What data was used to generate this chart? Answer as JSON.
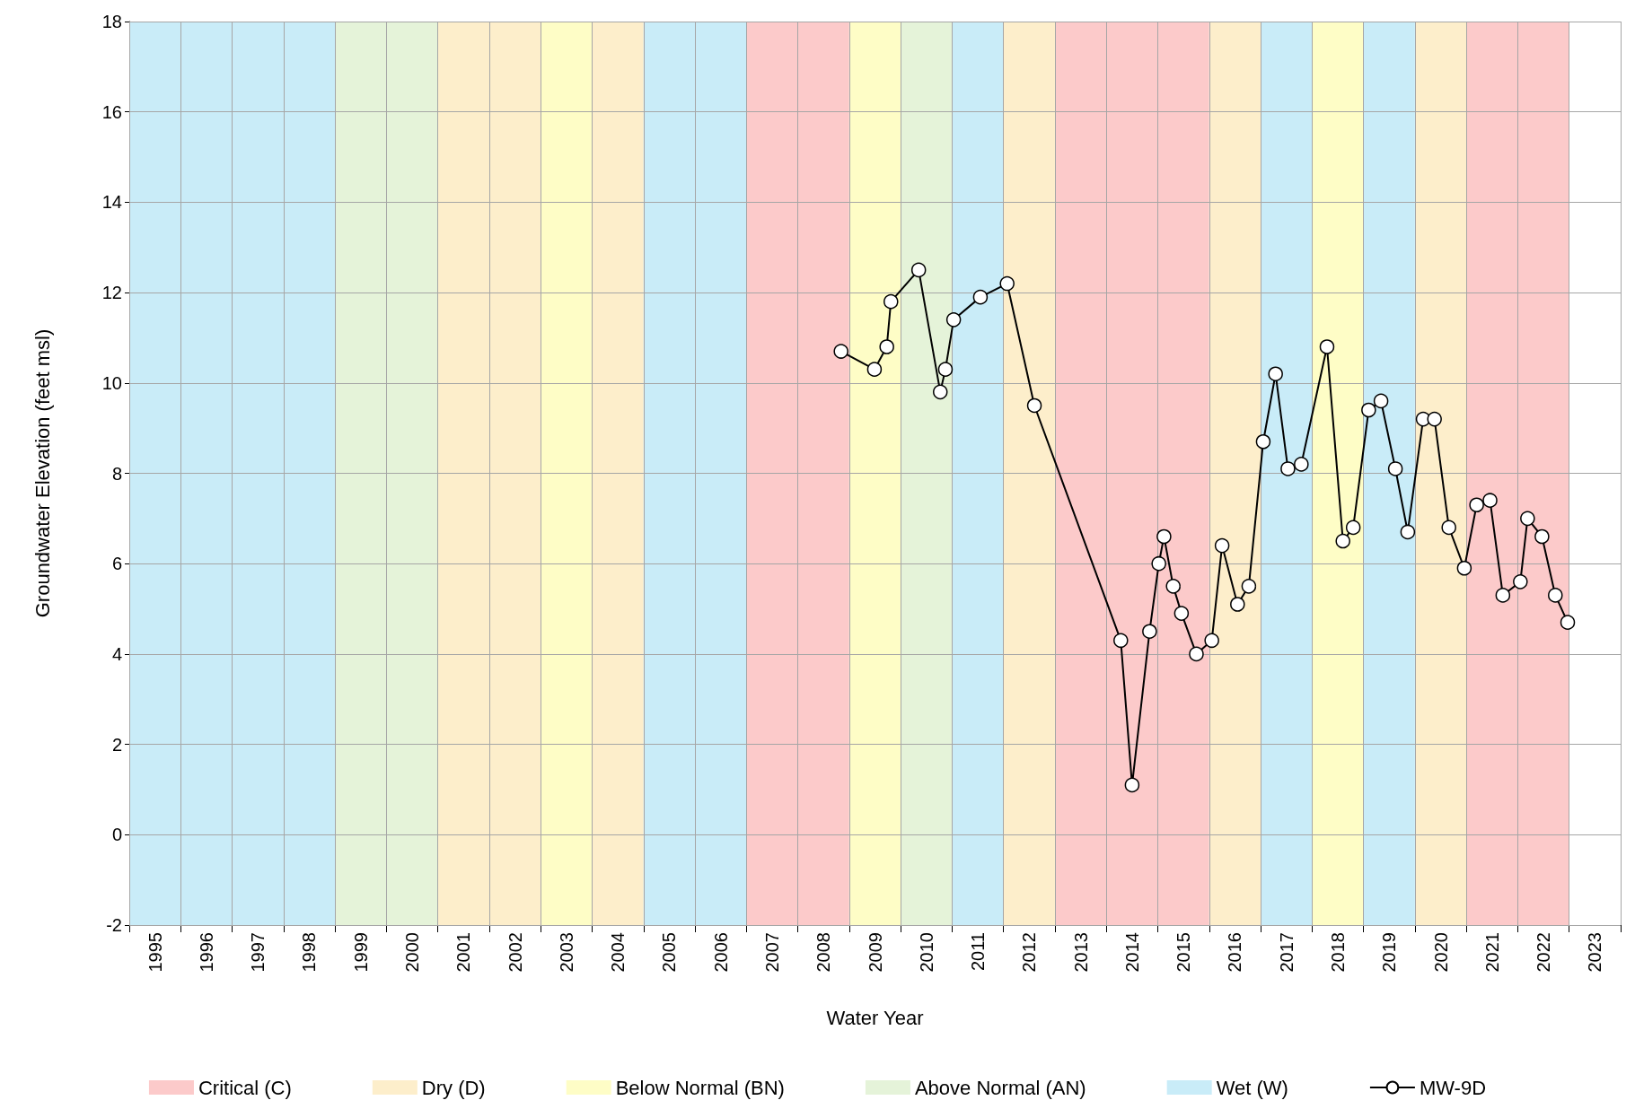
{
  "chart_data": {
    "type": "line",
    "xlabel": "Water Year",
    "ylabel": "Groundwater Elevation (feet msl)",
    "xlim": [
      1994.5,
      2023.5
    ],
    "ylim": [
      -2,
      18
    ],
    "yticks": [
      -2,
      0,
      2,
      4,
      6,
      8,
      10,
      12,
      14,
      16,
      18
    ],
    "xticks": [
      {
        "value": 1994.5,
        "label": null
      },
      {
        "value": 1995,
        "label": "1995"
      },
      {
        "value": 1995.5,
        "label": null
      },
      {
        "value": 1996,
        "label": "1996"
      },
      {
        "value": 1996.5,
        "label": null
      },
      {
        "value": 1997,
        "label": "1997"
      },
      {
        "value": 1997.5,
        "label": null
      },
      {
        "value": 1998,
        "label": "1998"
      },
      {
        "value": 1998.5,
        "label": null
      },
      {
        "value": 1999,
        "label": "1999"
      },
      {
        "value": 1999.5,
        "label": null
      },
      {
        "value": 2000,
        "label": "2000"
      },
      {
        "value": 2000.5,
        "label": null
      },
      {
        "value": 2001,
        "label": "2001"
      },
      {
        "value": 2001.5,
        "label": null
      },
      {
        "value": 2002,
        "label": "2002"
      },
      {
        "value": 2002.5,
        "label": null
      },
      {
        "value": 2003,
        "label": "2003"
      },
      {
        "value": 2003.5,
        "label": null
      },
      {
        "value": 2004,
        "label": "2004"
      },
      {
        "value": 2004.5,
        "label": null
      },
      {
        "value": 2005,
        "label": "2005"
      },
      {
        "value": 2005.5,
        "label": null
      },
      {
        "value": 2006,
        "label": "2006"
      },
      {
        "value": 2006.5,
        "label": null
      },
      {
        "value": 2007,
        "label": "2007"
      },
      {
        "value": 2007.5,
        "label": null
      },
      {
        "value": 2008,
        "label": "2008"
      },
      {
        "value": 2008.5,
        "label": null
      },
      {
        "value": 2009,
        "label": "2009"
      },
      {
        "value": 2009.5,
        "label": null
      },
      {
        "value": 2010,
        "label": "2010"
      },
      {
        "value": 2010.5,
        "label": null
      },
      {
        "value": 2011,
        "label": "2011"
      },
      {
        "value": 2011.5,
        "label": null
      },
      {
        "value": 2012,
        "label": "2012"
      },
      {
        "value": 2012.5,
        "label": null
      },
      {
        "value": 2013,
        "label": "2013"
      },
      {
        "value": 2013.5,
        "label": null
      },
      {
        "value": 2014,
        "label": "2014"
      },
      {
        "value": 2014.5,
        "label": null
      },
      {
        "value": 2015,
        "label": "2015"
      },
      {
        "value": 2015.5,
        "label": null
      },
      {
        "value": 2016,
        "label": "2016"
      },
      {
        "value": 2016.5,
        "label": null
      },
      {
        "value": 2017,
        "label": "2017"
      },
      {
        "value": 2017.5,
        "label": null
      },
      {
        "value": 2018,
        "label": "2018"
      },
      {
        "value": 2018.5,
        "label": null
      },
      {
        "value": 2019,
        "label": "2019"
      },
      {
        "value": 2019.5,
        "label": null
      },
      {
        "value": 2020,
        "label": "2020"
      },
      {
        "value": 2020.5,
        "label": null
      },
      {
        "value": 2021,
        "label": "2021"
      },
      {
        "value": 2021.5,
        "label": null
      },
      {
        "value": 2022,
        "label": "2022"
      },
      {
        "value": 2022.5,
        "label": null
      },
      {
        "value": 2023,
        "label": "2023"
      },
      {
        "value": 2023.5,
        "label": null
      }
    ],
    "grid": true,
    "legend": "bottom",
    "marker": "circle",
    "line_style": "solid",
    "bands": [
      {
        "axis": "x",
        "from": 2006.5,
        "to": 2008.5,
        "label": "Critical (C)",
        "color": "#fccaca"
      },
      {
        "axis": "x",
        "from": 2012.5,
        "to": 2015.5,
        "color": "#fccaca"
      },
      {
        "axis": "x",
        "from": 2020.5,
        "to": 2022.5,
        "color": "#fccaca"
      },
      {
        "axis": "x",
        "from": 2000.5,
        "to": 2002.5,
        "label": "Dry (D)",
        "color": "#fdeecb"
      },
      {
        "axis": "x",
        "from": 2003.5,
        "to": 2004.5,
        "color": "#fdeecb"
      },
      {
        "axis": "x",
        "from": 2011.5,
        "to": 2012.5,
        "color": "#fdeecb"
      },
      {
        "axis": "x",
        "from": 2015.5,
        "to": 2016.5,
        "color": "#fdeecb"
      },
      {
        "axis": "x",
        "from": 2019.5,
        "to": 2020.5,
        "color": "#fdeecb"
      },
      {
        "axis": "x",
        "from": 2002.5,
        "to": 2003.5,
        "label": "Below Normal (BN)",
        "color": "#fefdc6"
      },
      {
        "axis": "x",
        "from": 2008.5,
        "to": 2009.5,
        "color": "#fefdc6"
      },
      {
        "axis": "x",
        "from": 2017.5,
        "to": 2018.5,
        "color": "#fefdc6"
      },
      {
        "axis": "x",
        "from": 1998.5,
        "to": 2000.5,
        "label": "Above Normal (AN)",
        "color": "#e5f3d9"
      },
      {
        "axis": "x",
        "from": 2009.5,
        "to": 2010.5,
        "color": "#e5f3d9"
      },
      {
        "axis": "x",
        "from": 1994.5,
        "to": 1998.5,
        "label": "Wet (W)",
        "color": "#c9ecf8"
      },
      {
        "axis": "x",
        "from": 2004.5,
        "to": 2006.5,
        "color": "#c9ecf8"
      },
      {
        "axis": "x",
        "from": 2010.5,
        "to": 2011.5,
        "color": "#c9ecf8"
      },
      {
        "axis": "x",
        "from": 2016.5,
        "to": 2017.5,
        "color": "#c9ecf8"
      },
      {
        "axis": "x",
        "from": 2018.5,
        "to": 2019.5,
        "color": "#c9ecf8"
      }
    ],
    "series": [
      {
        "name": "MW-9D",
        "color": "#000000",
        "x": [
          2008.34,
          2008.99,
          2009.23,
          2009.31,
          2009.85,
          2010.27,
          2010.37,
          2010.53,
          2011.05,
          2011.57,
          2012.1,
          2013.78,
          2014.0,
          2014.34,
          2014.52,
          2014.62,
          2014.8,
          2014.96,
          2015.25,
          2015.55,
          2015.75,
          2016.05,
          2016.27,
          2016.55,
          2016.79,
          2017.03,
          2017.29,
          2017.79,
          2018.1,
          2018.3,
          2018.6,
          2018.84,
          2019.12,
          2019.36,
          2019.66,
          2019.88,
          2020.16,
          2020.46,
          2020.7,
          2020.96,
          2021.21,
          2021.55,
          2021.69,
          2021.97,
          2022.23,
          2022.47
        ],
        "values": [
          10.7,
          10.3,
          10.8,
          11.8,
          12.5,
          9.8,
          10.3,
          11.4,
          11.9,
          12.2,
          9.5,
          4.3,
          1.1,
          4.5,
          6.0,
          6.6,
          5.5,
          4.9,
          4.0,
          4.3,
          6.4,
          5.1,
          5.5,
          8.7,
          10.2,
          8.1,
          8.2,
          10.8,
          6.5,
          6.8,
          9.4,
          9.6,
          8.1,
          6.7,
          9.2,
          9.2,
          6.8,
          5.9,
          7.3,
          7.4,
          5.3,
          5.6,
          7.0,
          6.6,
          5.3,
          4.7
        ]
      }
    ]
  }
}
